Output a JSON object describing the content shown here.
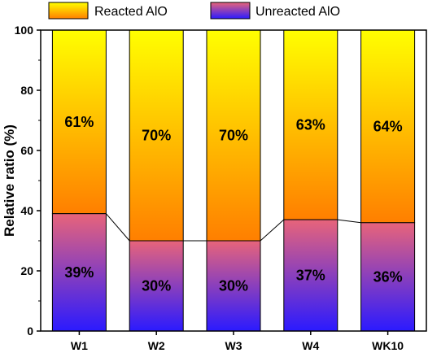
{
  "chart_data": {
    "type": "bar",
    "stacked": true,
    "percent_stacked": true,
    "categories": [
      "W1",
      "W2",
      "W3",
      "W4",
      "WK10"
    ],
    "series": [
      {
        "name": "Reacted AlO",
        "values": [
          61,
          70,
          70,
          63,
          64
        ],
        "labels": [
          "61%",
          "70%",
          "70%",
          "63%",
          "64%"
        ]
      },
      {
        "name": "Unreacted AlO",
        "values": [
          39,
          30,
          30,
          37,
          36
        ],
        "labels": [
          "39%",
          "30%",
          "30%",
          "37%",
          "36%"
        ]
      }
    ],
    "ylabel": "Relative ratio (%)",
    "xlabel": "",
    "ylim": [
      0,
      100
    ],
    "yticks": [
      0,
      20,
      40,
      60,
      80,
      100
    ],
    "legend_position": "top-left",
    "connector_line": true,
    "colors": {
      "reacted_top": "#ffff00",
      "reacted_bottom": "#ff7f00",
      "unreacted_top": "#e8647a",
      "unreacted_bottom": "#2b1aff",
      "line": "#000000"
    }
  }
}
